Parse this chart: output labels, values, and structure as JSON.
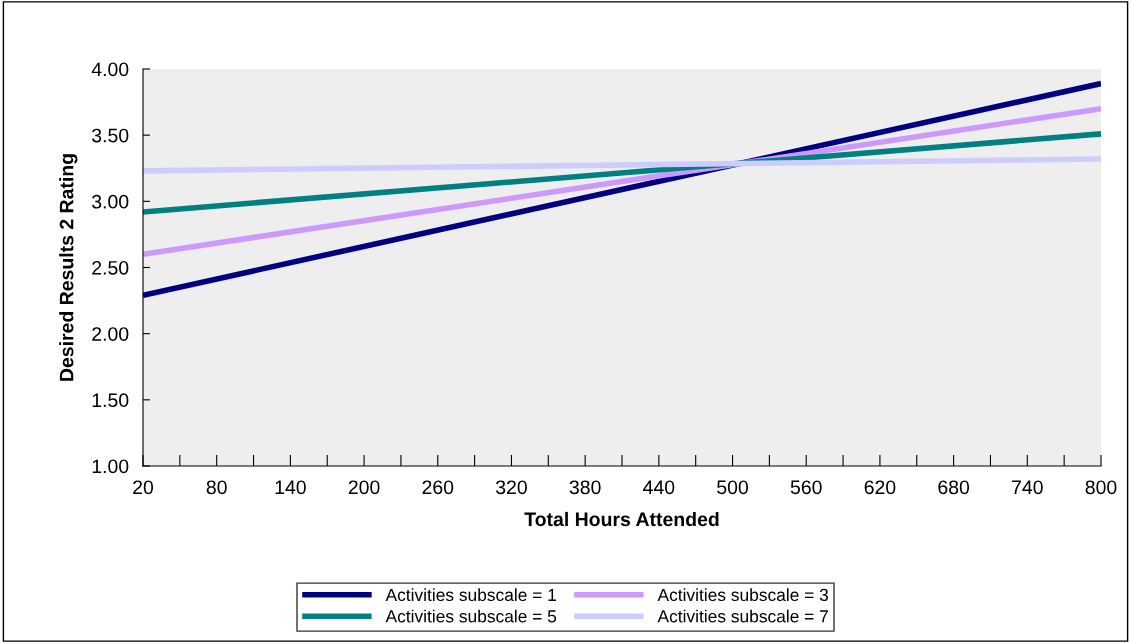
{
  "chart_data": {
    "type": "line",
    "xlabel": "Total Hours Attended",
    "ylabel": "Desired Results 2 Rating",
    "x": [
      20,
      800
    ],
    "series": [
      {
        "name": "Activities subscale = 1",
        "color": "#000080",
        "values": [
          2.29,
          3.89
        ]
      },
      {
        "name": "Activities subscale = 3",
        "color": "#cc99ff",
        "values": [
          2.6,
          3.7
        ]
      },
      {
        "name": "Activities subscale = 5",
        "color": "#008080",
        "values": [
          2.92,
          3.51
        ]
      },
      {
        "name": "Activities subscale = 7",
        "color": "#ccccff",
        "values": [
          3.23,
          3.32
        ]
      }
    ],
    "xlim": [
      20,
      800
    ],
    "xticks": [
      20,
      {
        "value": 50,
        "label": null
      },
      80,
      {
        "value": 110,
        "label": null
      },
      140,
      {
        "value": 170,
        "label": null
      },
      200,
      {
        "value": 230,
        "label": null
      },
      260,
      {
        "value": 290,
        "label": null
      },
      320,
      {
        "value": 350,
        "label": null
      },
      380,
      {
        "value": 410,
        "label": null
      },
      440,
      {
        "value": 470,
        "label": null
      },
      500,
      {
        "value": 530,
        "label": null
      },
      560,
      {
        "value": 590,
        "label": null
      },
      620,
      {
        "value": 650,
        "label": null
      },
      680,
      {
        "value": 710,
        "label": null
      },
      740,
      {
        "value": 770,
        "label": null
      },
      800
    ],
    "ylim": [
      1.0,
      4.0
    ],
    "yticks": [
      {
        "value": 1.0,
        "label": "1.00"
      },
      {
        "value": 1.5,
        "label": "1.50"
      },
      {
        "value": 2.0,
        "label": "2.00"
      },
      {
        "value": 2.5,
        "label": "2.50"
      },
      {
        "value": 3.0,
        "label": "3.00"
      },
      {
        "value": 3.5,
        "label": "3.50"
      },
      {
        "value": 4.0,
        "label": "4.00"
      }
    ],
    "grid": false,
    "legend": "bottom",
    "marker": "none",
    "line_style": "solid"
  }
}
